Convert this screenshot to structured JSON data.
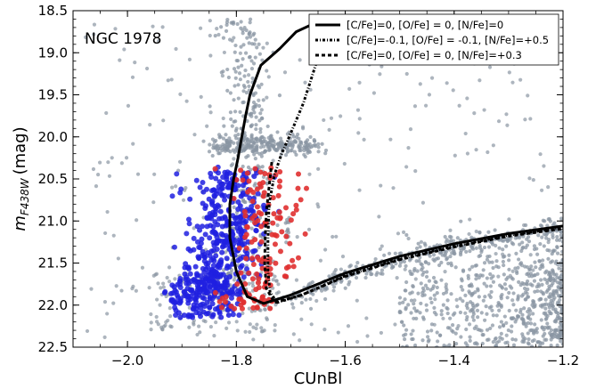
{
  "chart_data": {
    "type": "scatter",
    "annotation": "NGC 1978",
    "xlabel": "CUnBl",
    "ylabel_main": "m",
    "ylabel_sub": "F438W",
    "ylabel_unit": "(mag)",
    "xlim": [
      -2.1,
      -1.2
    ],
    "ylim": [
      22.5,
      18.5
    ],
    "y_inverted": true,
    "x_ticks": [
      -2.0,
      -1.8,
      -1.6,
      -1.4,
      -1.2
    ],
    "x_tick_labels": [
      "−2.0",
      "−1.8",
      "−1.6",
      "−1.4",
      "−1.2"
    ],
    "y_ticks": [
      18.5,
      19.0,
      19.5,
      20.0,
      20.5,
      21.0,
      21.5,
      22.0,
      22.5
    ],
    "y_tick_labels": [
      "18.5",
      "19.0",
      "19.5",
      "20.0",
      "20.5",
      "21.0",
      "21.5",
      "22.0",
      "22.5"
    ],
    "legend_position": "top-right",
    "colors": {
      "field_stars": "#8a96a3",
      "population_1": "#2020e0",
      "population_2": "#e03030",
      "isochrone": "#000000"
    },
    "series": [
      {
        "name": "[C/Fe]=0, [O/Fe] = 0, [N/Fe]=0",
        "style": "solid",
        "x": [
          -1.64,
          -1.69,
          -1.72,
          -1.755,
          -1.775,
          -1.783,
          -1.79,
          -1.797,
          -1.805,
          -1.812,
          -1.812,
          -1.8,
          -1.78,
          -1.75,
          -1.7,
          -1.6,
          -1.5,
          -1.4,
          -1.3,
          -1.2
        ],
        "y": [
          18.6,
          18.75,
          18.95,
          19.15,
          19.5,
          19.75,
          20.0,
          20.25,
          20.5,
          20.8,
          21.2,
          21.6,
          21.9,
          21.98,
          21.88,
          21.62,
          21.42,
          21.27,
          21.15,
          21.06
        ]
      },
      {
        "name": "[C/Fe]=-0.1, [O/Fe] = -0.1, [N/Fe]=+0.5",
        "style": "dashdot",
        "x": [
          -1.6,
          -1.645,
          -1.662,
          -1.677,
          -1.69,
          -1.703,
          -1.717,
          -1.73,
          -1.74,
          -1.742,
          -1.742,
          -1.738,
          -1.725,
          -1.68,
          -1.6,
          -1.5,
          -1.4,
          -1.3,
          -1.2
        ],
        "y": [
          18.55,
          18.95,
          19.3,
          19.6,
          19.8,
          20.0,
          20.2,
          20.45,
          20.8,
          21.2,
          21.6,
          21.85,
          21.97,
          21.88,
          21.65,
          21.45,
          21.3,
          21.17,
          21.08
        ]
      },
      {
        "name": "[C/Fe]=0, [O/Fe] = 0, [N/Fe]=+0.3",
        "style": "dashed",
        "x": [
          -1.735,
          -1.74,
          -1.745,
          -1.747,
          -1.748,
          -1.745,
          -1.73,
          -1.68,
          -1.6,
          -1.5,
          -1.4,
          -1.3,
          -1.2
        ],
        "y": [
          20.3,
          20.6,
          20.9,
          21.2,
          21.5,
          21.8,
          21.97,
          21.88,
          21.66,
          21.46,
          21.31,
          21.18,
          21.09
        ]
      }
    ]
  }
}
